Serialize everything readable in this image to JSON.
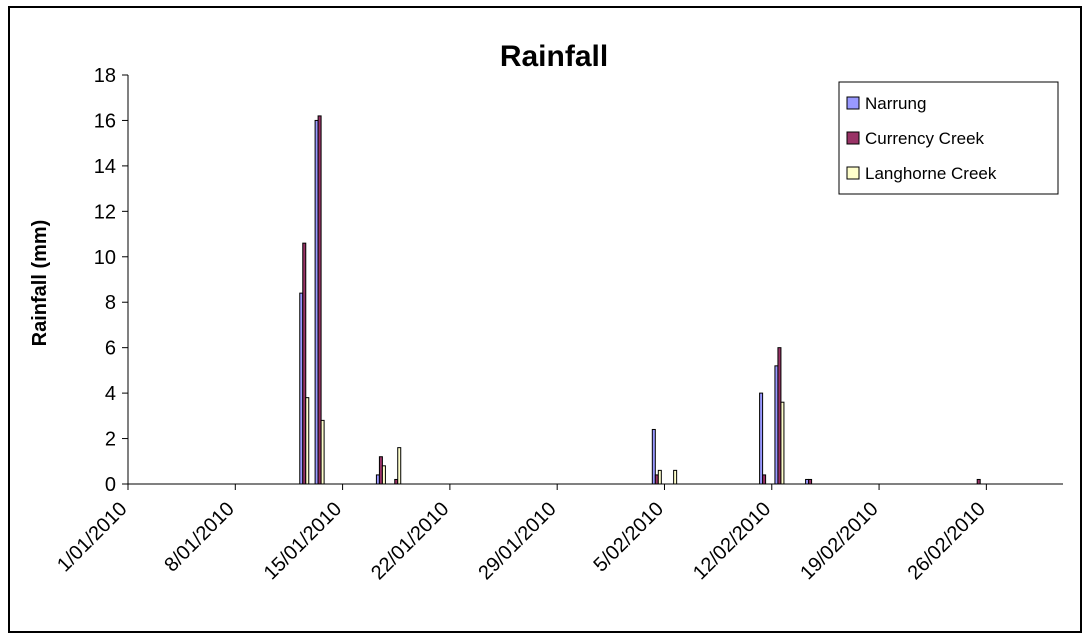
{
  "chart_data": {
    "type": "bar",
    "title": "Rainfall",
    "xlabel": "",
    "ylabel": "Rainfall (mm)",
    "ylim": [
      0,
      18
    ],
    "yticks": [
      0,
      2,
      4,
      6,
      8,
      10,
      12,
      14,
      16,
      18
    ],
    "xlim": [
      "2010-01-01",
      "2010-03-03"
    ],
    "xticks": [
      "1/01/2010",
      "8/01/2010",
      "15/01/2010",
      "22/01/2010",
      "29/01/2010",
      "5/02/2010",
      "12/02/2010",
      "19/02/2010",
      "26/02/2010"
    ],
    "grid": false,
    "legend_position": "top-right",
    "series": [
      {
        "name": "Narrung",
        "color": "#9999ff",
        "points": [
          {
            "x": "2010-01-12",
            "y": 8.4
          },
          {
            "x": "2010-01-13",
            "y": 16.0
          },
          {
            "x": "2010-01-17",
            "y": 0.4
          },
          {
            "x": "2010-02-04",
            "y": 2.4
          },
          {
            "x": "2010-02-11",
            "y": 4.0
          },
          {
            "x": "2010-02-12",
            "y": 5.2
          },
          {
            "x": "2010-02-14",
            "y": 0.2
          }
        ]
      },
      {
        "name": "Currency Creek",
        "color": "#993366",
        "points": [
          {
            "x": "2010-01-12",
            "y": 10.6
          },
          {
            "x": "2010-01-13",
            "y": 16.2
          },
          {
            "x": "2010-01-17",
            "y": 1.2
          },
          {
            "x": "2010-01-18",
            "y": 0.2
          },
          {
            "x": "2010-02-04",
            "y": 0.4
          },
          {
            "x": "2010-02-11",
            "y": 0.4
          },
          {
            "x": "2010-02-12",
            "y": 6.0
          },
          {
            "x": "2010-02-14",
            "y": 0.2
          },
          {
            "x": "2010-02-25",
            "y": 0.2
          }
        ]
      },
      {
        "name": "Langhorne Creek",
        "color": "#ffffcc",
        "points": [
          {
            "x": "2010-01-12",
            "y": 3.8
          },
          {
            "x": "2010-01-13",
            "y": 2.8
          },
          {
            "x": "2010-01-17",
            "y": 0.8
          },
          {
            "x": "2010-01-18",
            "y": 1.6
          },
          {
            "x": "2010-02-04",
            "y": 0.6
          },
          {
            "x": "2010-02-05",
            "y": 0.6
          },
          {
            "x": "2010-02-12",
            "y": 3.6
          }
        ]
      }
    ]
  }
}
